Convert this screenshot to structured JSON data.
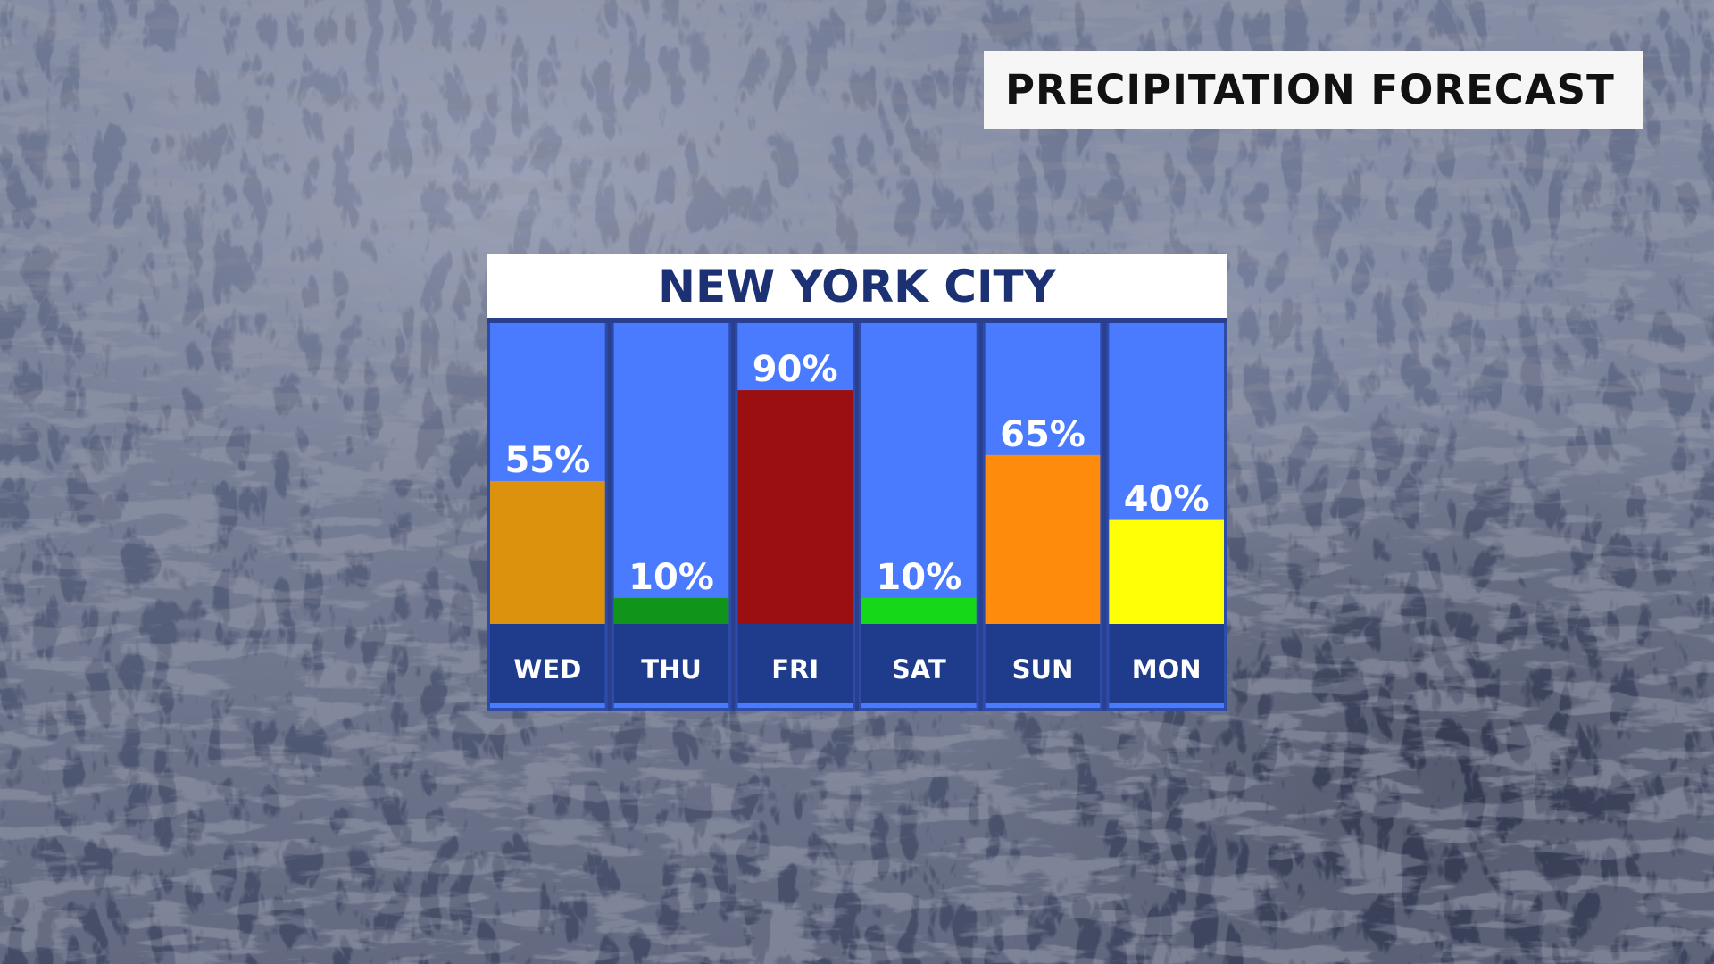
{
  "header": {
    "title": "PRECIPITATION FORECAST"
  },
  "panel": {
    "location": "NEW YORK CITY"
  },
  "colors": {
    "panel_blue": "#4a7bff",
    "label_band": "#1f3c8c",
    "title_text": "#1b3174",
    "value_text": "#ffffff"
  },
  "chart_data": {
    "type": "bar",
    "title": "NEW YORK CITY",
    "categories": [
      "WED",
      "THU",
      "FRI",
      "SAT",
      "SUN",
      "MON"
    ],
    "values": [
      55,
      10,
      90,
      10,
      65,
      40
    ],
    "value_labels": [
      "55%",
      "10%",
      "90%",
      "10%",
      "65%",
      "40%"
    ],
    "bar_colors": [
      "#dc920c",
      "#11941a",
      "#9b0f10",
      "#14d818",
      "#ff8b0d",
      "#ffff05"
    ],
    "ylim": [
      0,
      100
    ],
    "xlabel": "",
    "ylabel": "",
    "grid": false,
    "legend": "none"
  }
}
